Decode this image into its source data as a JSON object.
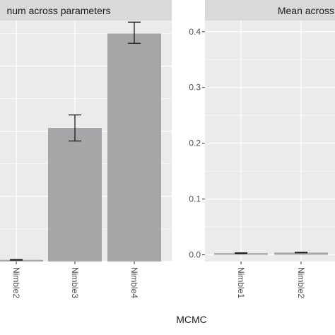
{
  "chart_data": {
    "xlabel": "MCMC",
    "panels": [
      {
        "type": "bar",
        "title": "num across parameters",
        "categories": [
          "Nimble2",
          "Nimble3",
          "Nimble4"
        ],
        "values": [
          0.5,
          41,
          70
        ],
        "error_low": [
          0.4,
          37,
          67
        ],
        "error_high": [
          0.6,
          45,
          73.5
        ],
        "ylim": [
          0,
          74
        ]
      },
      {
        "type": "bar",
        "title": "Mean across",
        "categories": [
          "Nimble1",
          "Nimble2"
        ],
        "values": [
          0.003,
          0.004
        ],
        "error_low": [
          0.0025,
          0.0035
        ],
        "error_high": [
          0.0035,
          0.0045
        ],
        "yticks": [
          "0.0",
          "0.1",
          "0.2",
          "0.3",
          "0.4"
        ],
        "ylim": [
          -0.012,
          0.42
        ]
      }
    ]
  },
  "colors": {
    "bar": "#a6a6a8",
    "panel_bg": "#ebebeb",
    "strip_bg": "#d9d9d9",
    "grid": "#ffffff",
    "errorbar": "#1a1a1a"
  }
}
